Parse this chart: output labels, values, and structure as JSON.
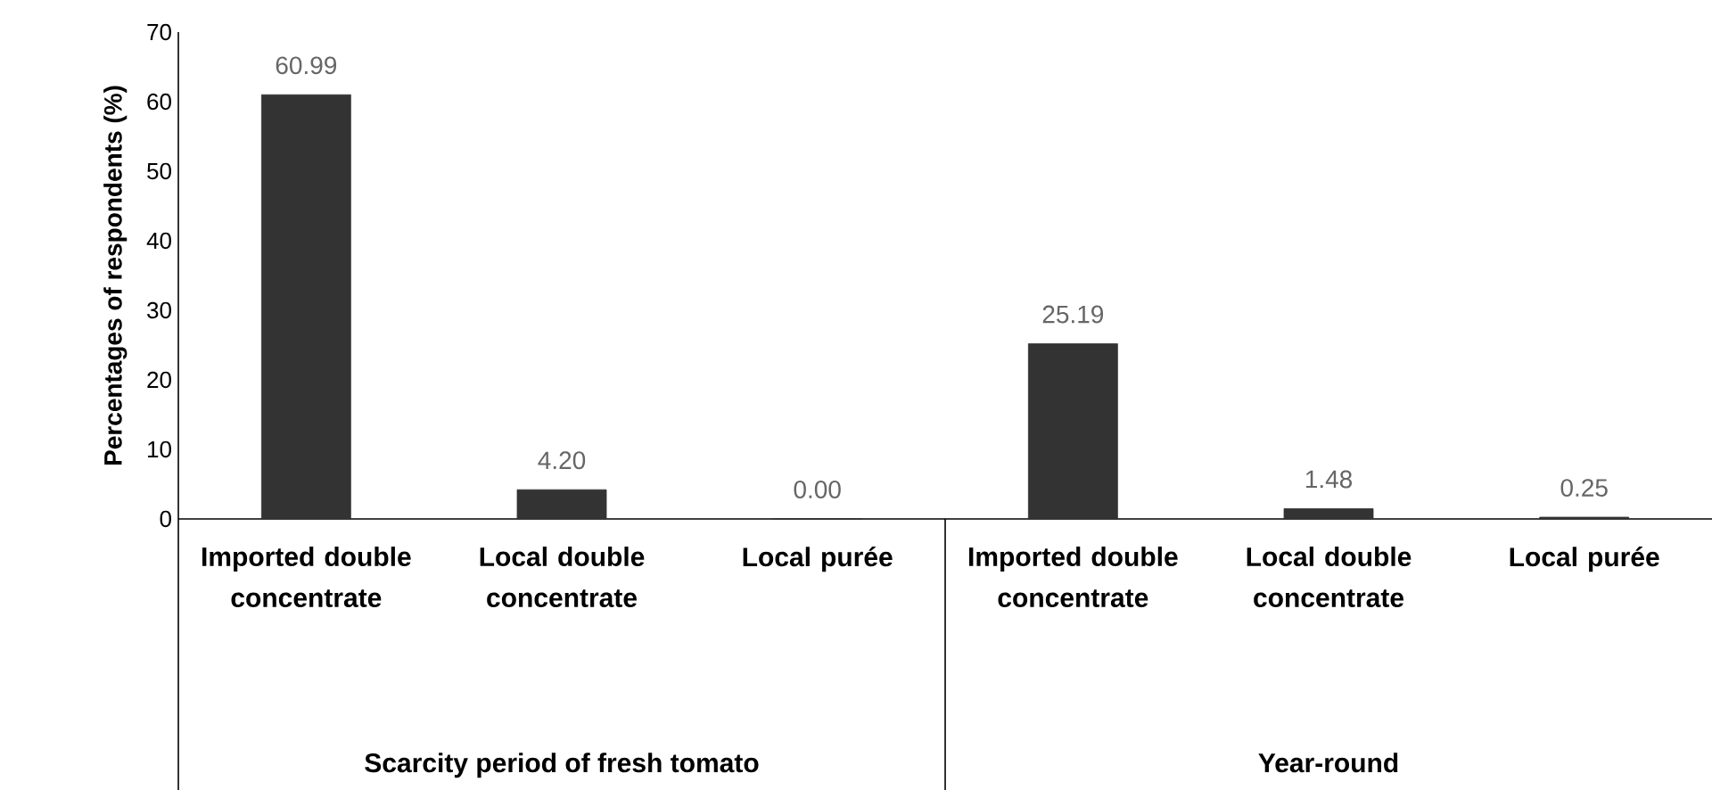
{
  "chart_data": {
    "type": "bar",
    "ylabel": "Percentages of respondents (%)",
    "categories": [
      "Imported double concentrate",
      "Local double concentrate",
      "Local purée",
      "Imported double concentrate",
      "Local double concentrate",
      "Local purée"
    ],
    "values": [
      60.99,
      4.2,
      0.0,
      25.19,
      1.48,
      0.25
    ],
    "value_labels": [
      "60.99",
      "4.20",
      "0.00",
      "25.19",
      "1.48",
      "0.25"
    ],
    "color": "#333333",
    "ylim": [
      0,
      70
    ],
    "yticks": [
      0,
      10,
      20,
      30,
      40,
      50,
      60,
      70
    ],
    "grid": false,
    "annotations": [
      "Scarcity period of fresh tomato",
      "Year-round"
    ]
  }
}
